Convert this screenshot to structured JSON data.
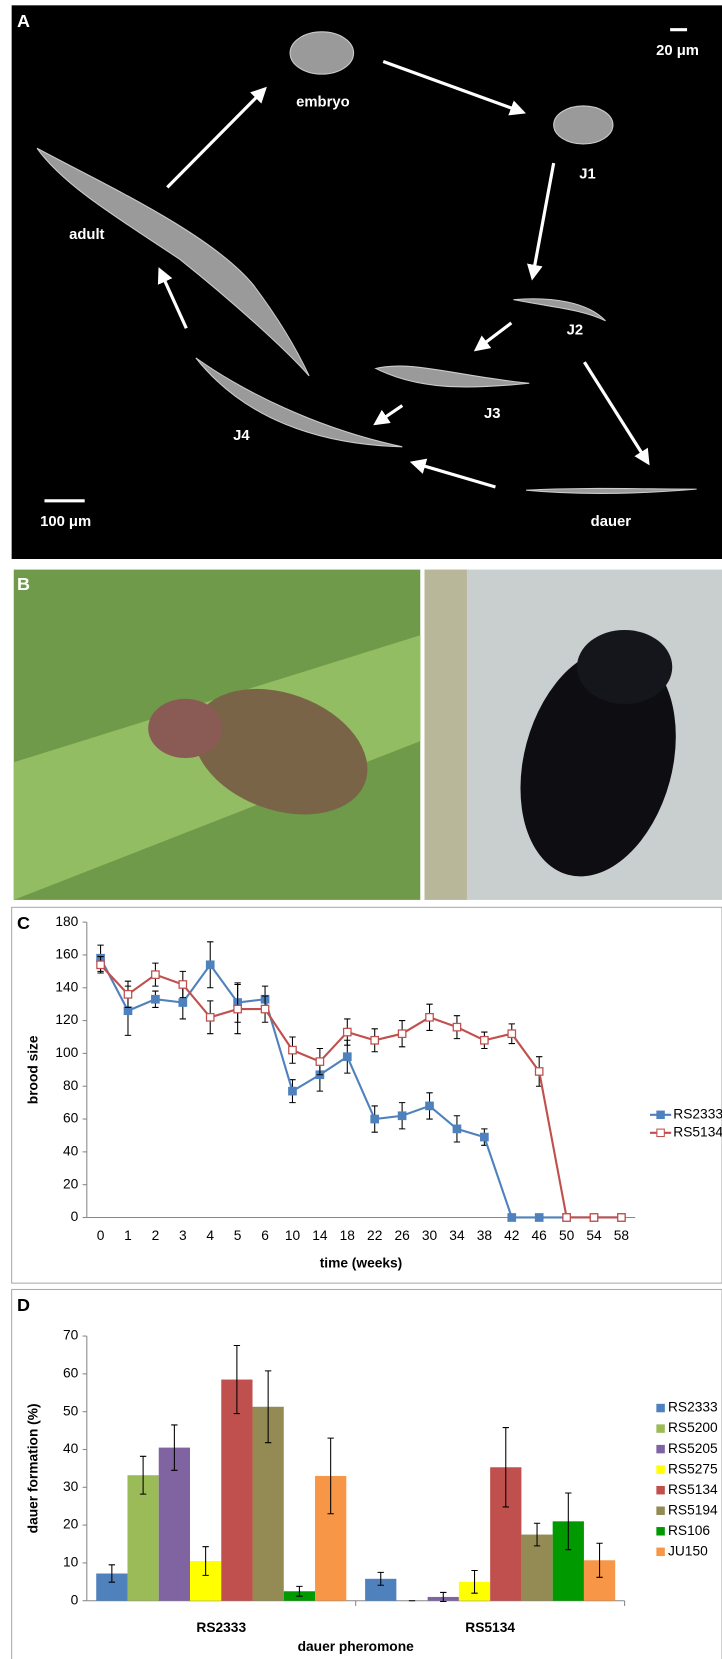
{
  "panel_a": {
    "label": "A",
    "scale_top": "20 μm",
    "scale_bottom": "100 μm",
    "stages": [
      "embryo",
      "J1",
      "J2",
      "J3",
      "J4",
      "adult",
      "dauer"
    ]
  },
  "panel_b": {
    "label": "B"
  },
  "chart_data": [
    {
      "type": "line",
      "panel": "C",
      "xlabel": "time (weeks)",
      "ylabel": "brood size",
      "categories": [
        "0",
        "1",
        "2",
        "3",
        "4",
        "5",
        "6",
        "10",
        "14",
        "18",
        "22",
        "26",
        "30",
        "34",
        "38",
        "42",
        "46",
        "50",
        "54",
        "58"
      ],
      "ylim": [
        0,
        180
      ],
      "yticks": [
        0,
        20,
        40,
        60,
        80,
        100,
        120,
        140,
        160,
        180
      ],
      "grid": false,
      "series": [
        {
          "name": "RS2333",
          "color": "#4f81bd",
          "marker": "filled",
          "values": [
            158,
            126,
            133,
            131,
            154,
            131,
            133,
            77,
            87,
            98,
            60,
            62,
            68,
            54,
            49,
            0,
            0,
            0,
            0,
            0
          ],
          "errors": [
            8,
            15,
            5,
            10,
            14,
            12,
            8,
            7,
            10,
            10,
            8,
            8,
            8,
            8,
            5,
            0,
            0,
            0,
            0,
            0
          ]
        },
        {
          "name": "RS5134",
          "color": "#c0504d",
          "marker": "open",
          "values": [
            154,
            136,
            148,
            142,
            122,
            127,
            127,
            102,
            95,
            113,
            108,
            112,
            122,
            116,
            108,
            112,
            89,
            0,
            0,
            0
          ],
          "errors": [
            5,
            8,
            7,
            8,
            10,
            15,
            8,
            8,
            8,
            8,
            7,
            8,
            8,
            7,
            5,
            6,
            9,
            0,
            0,
            0
          ]
        }
      ]
    },
    {
      "type": "bar",
      "panel": "D",
      "xlabel": "dauer pheromone",
      "ylabel": "dauer formation (%)",
      "categories": [
        "RS2333",
        "RS5134"
      ],
      "ylim": [
        0,
        70
      ],
      "yticks": [
        0,
        10,
        20,
        30,
        40,
        50,
        60,
        70
      ],
      "grid": false,
      "series": [
        {
          "name": "RS2333",
          "color": "#4f81bd",
          "values": [
            7.2,
            5.8
          ],
          "errors": [
            2.3,
            1.7
          ]
        },
        {
          "name": "RS5200",
          "color": "#9bbb59",
          "values": [
            33.2,
            0
          ],
          "errors": [
            5,
            0
          ]
        },
        {
          "name": "RS5205",
          "color": "#8064a2",
          "values": [
            40.5,
            1
          ],
          "errors": [
            6,
            1.2
          ]
        },
        {
          "name": "RS5275",
          "color": "#ffff00",
          "values": [
            10.5,
            5
          ],
          "errors": [
            3.8,
            3
          ]
        },
        {
          "name": "RS5134",
          "color": "#c0504d",
          "values": [
            58.5,
            35.3
          ],
          "errors": [
            9,
            10.5
          ]
        },
        {
          "name": "RS5194",
          "color": "#948a54",
          "values": [
            51.3,
            17.5
          ],
          "errors": [
            9.5,
            3
          ]
        },
        {
          "name": "RS106",
          "color": "#009900",
          "values": [
            2.5,
            21
          ],
          "errors": [
            1.3,
            7.5
          ]
        },
        {
          "name": "JU150",
          "color": "#f79646",
          "values": [
            33,
            10.7
          ],
          "errors": [
            10,
            4.5
          ]
        }
      ]
    }
  ]
}
